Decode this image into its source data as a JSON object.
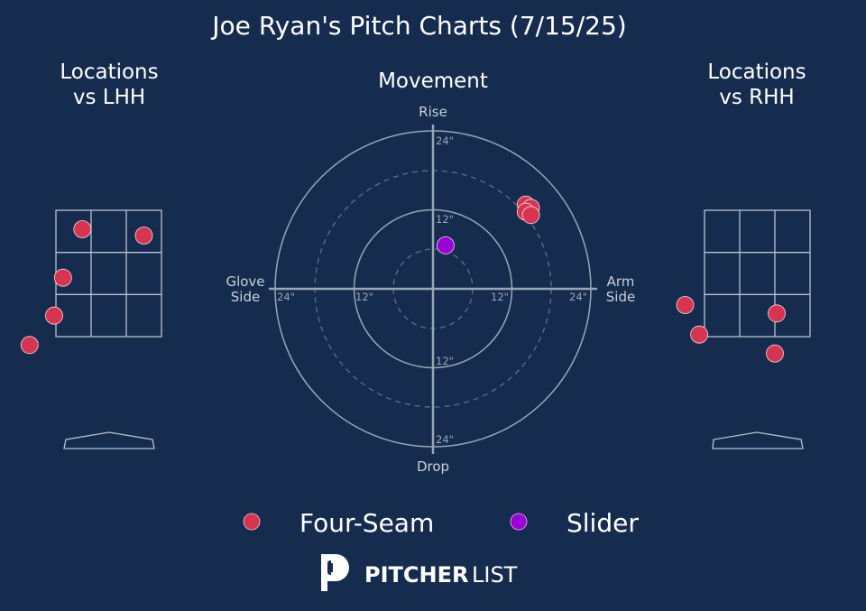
{
  "title": "Joe Ryan's Pitch Charts (7/15/25)",
  "panels": {
    "lhh_title": [
      "Locations",
      "vs LHH"
    ],
    "movement_title": "Movement",
    "rhh_title": [
      "Locations",
      "vs RHH"
    ]
  },
  "movement_axes": {
    "top": "Rise",
    "bottom": "Drop",
    "left": [
      "Glove",
      "Side"
    ],
    "right": [
      "Arm",
      "Side"
    ],
    "ring_labels": [
      "24\"",
      "12\""
    ]
  },
  "legend": {
    "items": [
      {
        "name": "Four-Seam",
        "color": "#d6344f"
      },
      {
        "name": "Slider",
        "color": "#9b00d9"
      }
    ]
  },
  "brand": {
    "bold": "PITCHER",
    "light": "LIST"
  },
  "chart_data": [
    {
      "type": "scatter",
      "title": "Locations vs LHH",
      "series": [
        {
          "name": "Four-Seam",
          "color": "#d6344f",
          "points": [
            [
              0.75,
              0.45
            ],
            [
              2.5,
              0.6
            ],
            [
              0.2,
              1.6
            ],
            [
              -0.05,
              2.5
            ],
            [
              -0.75,
              3.2
            ]
          ]
        }
      ]
    },
    {
      "type": "scatter",
      "title": "Movement",
      "xlabel": "Glove Side / Arm Side",
      "ylabel": "Drop / Rise",
      "xlim": [
        -24,
        24
      ],
      "ylim": [
        -24,
        24
      ],
      "ring_levels": [
        6,
        12,
        18,
        24
      ],
      "series": [
        {
          "name": "Four-Seam",
          "color": "#d6344f",
          "points": [
            [
              14.1,
              12.8
            ],
            [
              14.9,
              12.3
            ],
            [
              14.1,
              11.7
            ],
            [
              14.9,
              11.2
            ]
          ]
        },
        {
          "name": "Slider",
          "color": "#9b00d9",
          "points": [
            [
              1.9,
              6.6
            ]
          ]
        }
      ]
    },
    {
      "type": "scatter",
      "title": "Locations vs RHH",
      "series": [
        {
          "name": "Four-Seam",
          "color": "#d6344f",
          "points": [
            [
              -0.55,
              2.25
            ],
            [
              2.05,
              2.45
            ],
            [
              -0.15,
              2.95
            ],
            [
              2.0,
              3.4
            ]
          ]
        }
      ]
    }
  ]
}
